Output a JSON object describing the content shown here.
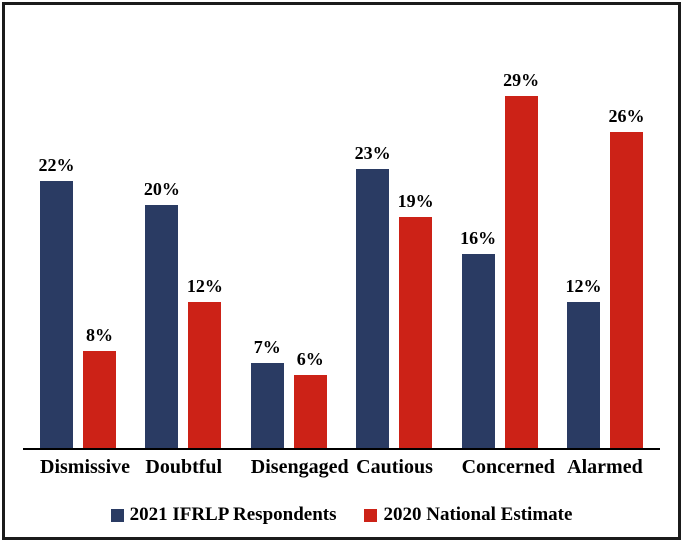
{
  "chart_data": {
    "type": "bar",
    "categories": [
      "Dismissive",
      "Doubtful",
      "Disengaged",
      "Cautious",
      "Concerned",
      "Alarmed"
    ],
    "series": [
      {
        "name": "2021 IFRLP Respondents",
        "color": "#2A3B63",
        "values": [
          22,
          20,
          7,
          23,
          16,
          12
        ],
        "labels": [
          "22%",
          "20%",
          "7%",
          "23%",
          "16%",
          "12%"
        ]
      },
      {
        "name": "2020 National Estimate",
        "color": "#CC2217",
        "values": [
          8,
          12,
          6,
          19,
          29,
          26
        ],
        "labels": [
          "8%",
          "12%",
          "6%",
          "19%",
          "29%",
          "26%"
        ]
      }
    ],
    "value_suffix": "%",
    "ylim": [
      0,
      30
    ],
    "grid": false,
    "legend_position": "bottom",
    "axis_color": "#000000",
    "frame_border_color": "#1b1b1b"
  }
}
